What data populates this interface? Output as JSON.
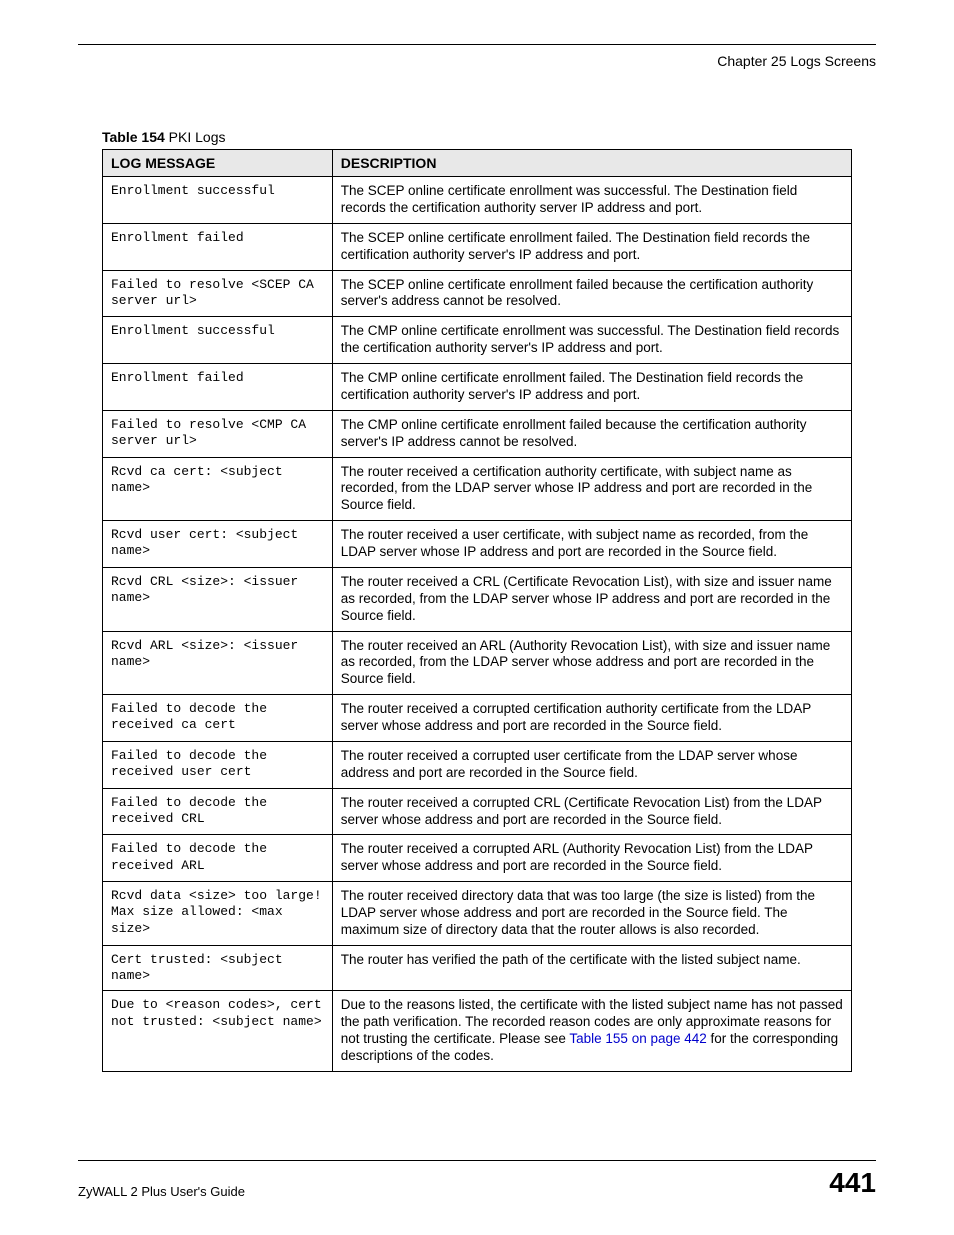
{
  "header": {
    "chapter": "Chapter 25 Logs Screens"
  },
  "table": {
    "caption_label": "Table 154",
    "caption_title": "   PKI Logs",
    "columns": [
      "LOG MESSAGE",
      "DESCRIPTION"
    ],
    "rows": [
      {
        "msg": "Enrollment successful",
        "desc": "The SCEP online certificate enrollment was successful. The Destination field records the certification authority server IP address and port."
      },
      {
        "msg": "Enrollment failed",
        "desc": "The SCEP online certificate enrollment failed. The Destination field records the certification authority server's IP address and port."
      },
      {
        "msg": "Failed to resolve <SCEP CA server url>",
        "desc": "The SCEP online certificate enrollment failed because the certification authority server's address cannot be resolved."
      },
      {
        "msg": "Enrollment successful",
        "desc": "The CMP online certificate enrollment was successful. The Destination field records the certification authority server's IP address and port."
      },
      {
        "msg": "Enrollment failed",
        "desc": "The CMP online certificate enrollment failed. The Destination field records the certification authority server's IP address and port."
      },
      {
        "msg": "Failed to resolve <CMP CA server url>",
        "desc": "The CMP online certificate enrollment failed because the certification authority server's IP address cannot be resolved."
      },
      {
        "msg": "Rcvd ca cert: <subject name>",
        "desc": "The router received a certification authority certificate, with subject name as recorded, from the LDAP server whose IP address and port are recorded in the Source field."
      },
      {
        "msg": "Rcvd user cert: <subject name>",
        "desc": "The router received a user certificate, with subject name as recorded, from the LDAP server whose IP address and port are recorded in the Source field."
      },
      {
        "msg": "Rcvd CRL <size>: <issuer name>",
        "desc": "The router received a CRL (Certificate Revocation List), with size and issuer name as recorded, from the LDAP server whose IP address and port are recorded in the Source field."
      },
      {
        "msg": "Rcvd ARL <size>: <issuer name>",
        "desc": "The router received an ARL (Authority Revocation List), with size and issuer name as recorded, from the LDAP server whose address and port are recorded in the Source field."
      },
      {
        "msg": "Failed to decode the received ca cert",
        "desc": "The router received a corrupted certification authority certificate from the LDAP server whose address and port are recorded in the Source field."
      },
      {
        "msg": "Failed to decode the received user cert",
        "desc": "The router received a corrupted user certificate from the LDAP server whose address and port are recorded in the Source field."
      },
      {
        "msg": "Failed to decode the received CRL",
        "desc": "The router received a corrupted CRL (Certificate Revocation List) from the LDAP server whose address and port are recorded in the Source field."
      },
      {
        "msg": "Failed to decode the received ARL",
        "desc": "The router received a corrupted ARL (Authority Revocation List) from the LDAP server whose address and port are recorded in the Source field."
      },
      {
        "msg": "Rcvd data <size> too large! Max size allowed: <max size>",
        "desc": "The router received directory data that was too large (the size is listed) from the LDAP server whose address and port are recorded in the Source field. The maximum size of directory data that the router allows is also recorded."
      },
      {
        "msg": "Cert trusted: <subject name>",
        "desc": "The router has verified the path of the certificate with the listed subject name."
      },
      {
        "msg": "Due to <reason codes>, cert not trusted: <subject name>",
        "desc_pre": "Due to the reasons listed, the certificate with the listed subject name has not passed the path verification. The recorded reason codes are only approximate reasons for not trusting the certificate. Please see ",
        "xref": "Table 155 on page 442",
        "desc_post": " for the corresponding descriptions of the codes."
      }
    ]
  },
  "footer": {
    "guide": "ZyWALL 2 Plus User's Guide",
    "page": "441"
  }
}
